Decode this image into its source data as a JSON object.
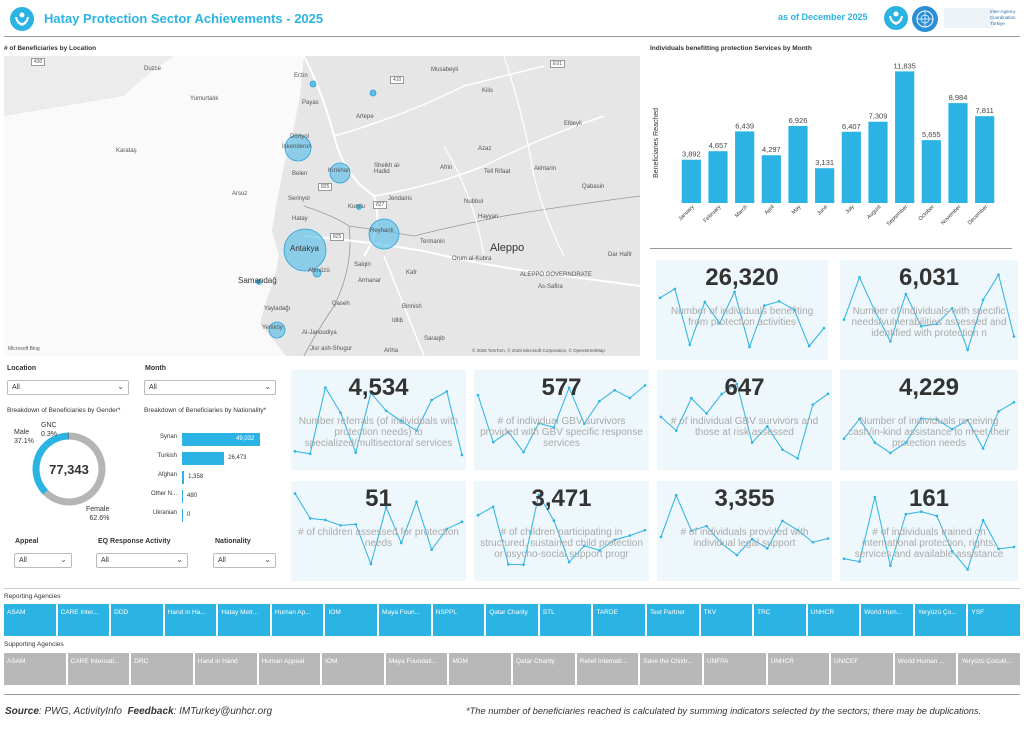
{
  "header": {
    "title": "Hatay Protection Sector Achievements - 2025",
    "as_of": "as of December 2025",
    "logo_text": "Inter-Agency Coordination Türkiye"
  },
  "map": {
    "title": "# of Beneficiaries by Location",
    "attribution": "© 2026 TomTom, © 2026 Microsoft Corporation, © OpenStreetMap",
    "brand": "Microsoft Bing",
    "labels": [
      "Duzce",
      "Yumurtalık",
      "Karataş",
      "Payas",
      "Dörtyol",
      "Erzin",
      "Artepe",
      "Musabeyli",
      "Kilis",
      "Elbeyli",
      "Azaz",
      "Dörtyol",
      "İskenderun",
      "Kırıkhan",
      "Belen",
      "Sheikh al-Hadid",
      "Afrin",
      "Tell Rifaat",
      "Akhtarin",
      "Qabasin",
      "Arsuz",
      "Samandağ",
      "Yayladağı",
      "Antakya",
      "Reyhanlı",
      "Kumlu",
      "Jendairis",
      "Altınözü",
      "Hatay",
      "Nubbul",
      "Hayyan",
      "Termanin",
      "Aleppo",
      "Orum al-Kubra",
      "Salqin",
      "Kafr",
      "Armanar",
      "ALEPPO GOVERNORATE",
      "As-Safira",
      "Qaseh",
      "Binnish",
      "Idlib",
      "Saraqib",
      "Al-Janoudiya",
      "Ariha",
      "Jisr ash-Shugur",
      "Yeniköy",
      "Dar Hafir",
      "Serinyol"
    ],
    "road_badges": [
      "430",
      "410",
      "E91",
      "825",
      "825",
      "827",
      "825",
      "E90"
    ]
  },
  "bar_chart": {
    "title": "Individuals benefitting protection Services by Month",
    "ylabel": "Beneficiaries Reached",
    "color": "#2bb3e3"
  },
  "chart_data": {
    "type": "bar",
    "categories": [
      "January",
      "February",
      "March",
      "April",
      "May",
      "June",
      "July",
      "August",
      "September",
      "October",
      "November",
      "December"
    ],
    "values": [
      3892,
      4657,
      6439,
      4297,
      6926,
      3131,
      6407,
      7309,
      11835,
      5655,
      8984,
      7811
    ],
    "value_labels": [
      "3,892",
      "4,657",
      "6,439",
      "4,297",
      "6,926",
      "3,131",
      "6,407",
      "7,309",
      "11,835",
      "5,655",
      "8,984",
      "7,811"
    ],
    "title": "Individuals benefitting protection Services by Month",
    "ylabel": "Beneficiaries Reached",
    "ylim": [
      0,
      12500
    ]
  },
  "kpis": [
    {
      "value": "26,320",
      "desc": "Number of individuals benefiting from protection activities"
    },
    {
      "value": "6,031",
      "desc": "Number of individuals with specific needs/vulnerabilities assessed and identified with protection n"
    },
    {
      "value": "4,534",
      "desc": "Number referrals (of individuals with protection needs) to specialized/multisectoral services"
    },
    {
      "value": "577",
      "desc": "# of individual GBV survivors provided with GBV specific response services"
    },
    {
      "value": "647",
      "desc": "# of individual GBV survivors and those at risk assessed"
    },
    {
      "value": "4,229",
      "desc": "Number of individuals receiving cash/in-kind assistance to meet their protection needs"
    },
    {
      "value": "51",
      "desc": "# of children assessed for protection needs"
    },
    {
      "value": "3,471",
      "desc": "# of children participating in structured, sustained child protection or psycho-social support progr"
    },
    {
      "value": "3,355",
      "desc": "# of individuals provided with individual legal support"
    },
    {
      "value": "161",
      "desc": "# of individuals trained on international protection, rights, services and available assistance"
    }
  ],
  "filters": {
    "location": {
      "label": "Location",
      "value": "All"
    },
    "month": {
      "label": "Month",
      "value": "All"
    },
    "appeal": {
      "label": "Appeal",
      "value": "All"
    },
    "eq": {
      "label": "EQ Response Activity",
      "value": "All"
    },
    "nationality": {
      "label": "Nationality",
      "value": "All"
    }
  },
  "gender": {
    "title": "Breakdown of Beneficiaries by Gender*",
    "total": "77,343",
    "male_label": "Male",
    "male_pct": "37.1%",
    "gnc_label": "GNC",
    "gnc_pct": "0.3%",
    "female_label": "Female",
    "female_pct": "62.6%",
    "male_fraction": 0.371,
    "gnc_fraction": 0.003,
    "female_fraction": 0.626
  },
  "nationality": {
    "title": "Breakdown of Beneficiaries by Nationality*",
    "rows": [
      {
        "name": "Syrian",
        "label": "49,032",
        "value": 49032
      },
      {
        "name": "Turkish",
        "label": "26,473",
        "value": 26473
      },
      {
        "name": "Afghan",
        "label": "1,358",
        "value": 1358
      },
      {
        "name": "Other N...",
        "label": "480",
        "value": 480
      },
      {
        "name": "Ukranian",
        "label": "0",
        "value": 0
      }
    ]
  },
  "reporting": {
    "title": "Reporting Agencies",
    "items": [
      "ASAM",
      "CARE Inter...",
      "DDD",
      "Hand in Ha...",
      "Hatay Metr...",
      "Human Ap...",
      "IOM",
      "Maya Foun...",
      "NSPPL",
      "Qatar Charity",
      "STL",
      "TARDE",
      "Test Partner",
      "TKV",
      "TRC",
      "UNHCR",
      "World Hum...",
      "Yeryüzü Ço...",
      "YSF"
    ]
  },
  "supporting": {
    "title": "Supporting Agencies",
    "items": [
      "ASAM",
      "CARE Internati...",
      "DRC",
      "Hand in Hand",
      "Human Appeal",
      "IOM",
      "Maya Foundati...",
      "MDM",
      "Qatar Charity",
      "Relief Internati...",
      "Save the Childr...",
      "UNFPA",
      "UNHCR",
      "UNICEF",
      "World Human ...",
      "Yeryüzü Çocukl..."
    ]
  },
  "footer": {
    "source_label": "Source",
    "source": ": PWG, ActivityInfo",
    "feedback_label": "Feedback",
    "feedback": ": IMTurkey@unhcr.org",
    "note": "*The number of beneficiaries reached is calculated by summing indicators selected by the sectors; there may be duplications."
  }
}
